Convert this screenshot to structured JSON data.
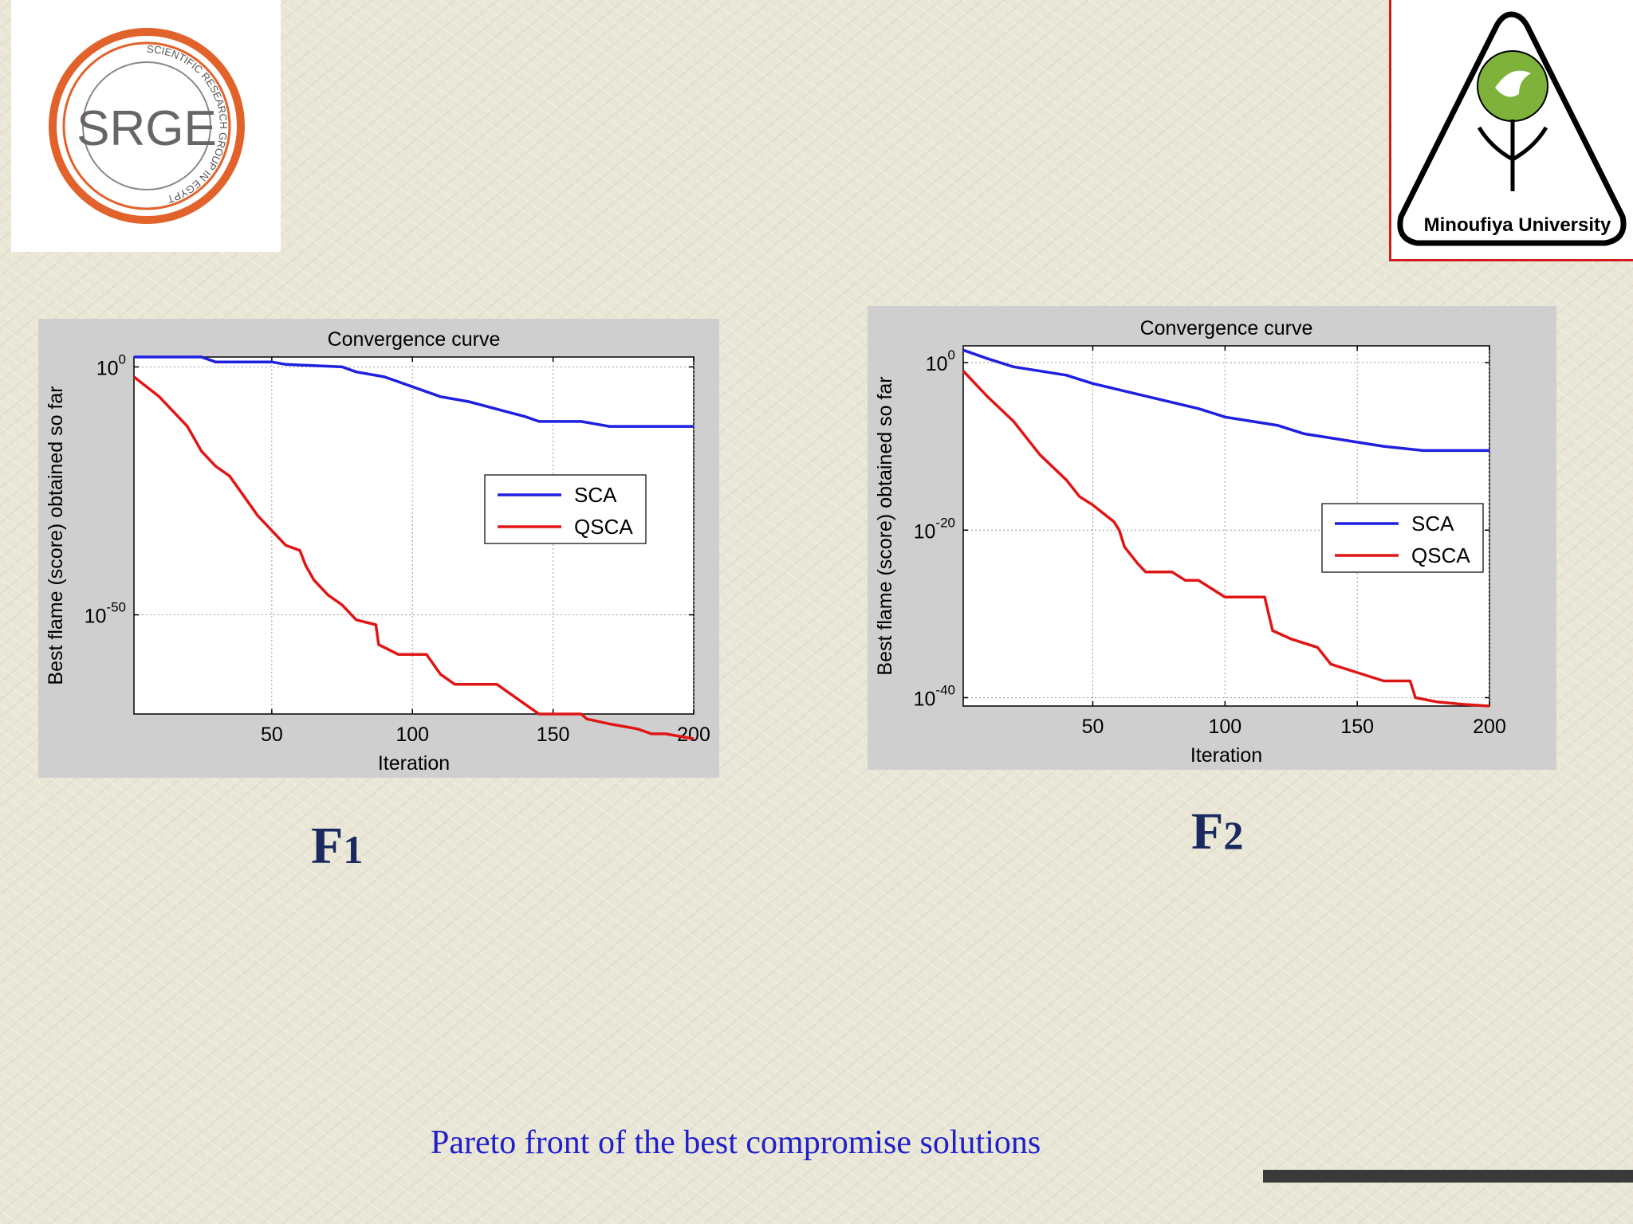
{
  "logos": {
    "left": {
      "text": "SRGE",
      "ring_text": "SCIENTIFIC RESEARCH GROUP IN EGYPT"
    },
    "right": {
      "text": "Minoufiya University"
    }
  },
  "figures": [
    {
      "label_main": "F",
      "label_sub": "1"
    },
    {
      "label_main": "F",
      "label_sub": "2"
    }
  ],
  "caption": "Pareto front of the best compromise solutions",
  "chart_data": [
    {
      "type": "line",
      "title": "Convergence curve",
      "xlabel": "Iteration",
      "ylabel": "Best flame (score) obtained so far",
      "xlim": [
        1,
        200
      ],
      "xticks": [
        50,
        100,
        150,
        200
      ],
      "yscale": "log",
      "yexp_range": [
        -70,
        2
      ],
      "yticks": [
        {
          "exp": 0,
          "label_base": "10",
          "label_exp": "0"
        },
        {
          "exp": -50,
          "label_base": "10",
          "label_exp": "-50"
        }
      ],
      "grid": true,
      "legend": "right",
      "series": [
        {
          "name": "SCA",
          "color": "#1f1fe0",
          "points_log10": [
            [
              1,
              2
            ],
            [
              25,
              2
            ],
            [
              30,
              1
            ],
            [
              50,
              1
            ],
            [
              55,
              0.5
            ],
            [
              75,
              0
            ],
            [
              80,
              -1
            ],
            [
              90,
              -2
            ],
            [
              100,
              -4
            ],
            [
              110,
              -6
            ],
            [
              120,
              -7
            ],
            [
              140,
              -10
            ],
            [
              145,
              -11
            ],
            [
              160,
              -11
            ],
            [
              170,
              -12
            ],
            [
              200,
              -12
            ]
          ]
        },
        {
          "name": "QSCA",
          "color": "#e01616",
          "points_log10": [
            [
              1,
              -2
            ],
            [
              10,
              -6
            ],
            [
              20,
              -12
            ],
            [
              25,
              -17
            ],
            [
              30,
              -20
            ],
            [
              35,
              -22
            ],
            [
              40,
              -26
            ],
            [
              45,
              -30
            ],
            [
              50,
              -33
            ],
            [
              55,
              -36
            ],
            [
              60,
              -37
            ],
            [
              62,
              -40
            ],
            [
              65,
              -43
            ],
            [
              70,
              -46
            ],
            [
              75,
              -48
            ],
            [
              80,
              -51
            ],
            [
              87,
              -52
            ],
            [
              88,
              -56
            ],
            [
              95,
              -58
            ],
            [
              105,
              -58
            ],
            [
              110,
              -62
            ],
            [
              115,
              -64
            ],
            [
              120,
              -64
            ],
            [
              130,
              -64
            ],
            [
              140,
              -68
            ],
            [
              145,
              -70
            ],
            [
              155,
              -70
            ],
            [
              160,
              -70
            ],
            [
              162,
              -71
            ],
            [
              170,
              -72
            ],
            [
              180,
              -73
            ],
            [
              185,
              -74
            ],
            [
              190,
              -74
            ],
            [
              200,
              -75
            ]
          ]
        }
      ]
    },
    {
      "type": "line",
      "title": "Convergence curve",
      "xlabel": "Iteration",
      "ylabel": "Best flame (score) obtained so far",
      "xlim": [
        1,
        200
      ],
      "xticks": [
        50,
        100,
        150,
        200
      ],
      "yscale": "log",
      "yexp_range": [
        -41,
        2
      ],
      "yticks": [
        {
          "exp": 0,
          "label_base": "10",
          "label_exp": "0"
        },
        {
          "exp": -20,
          "label_base": "10",
          "label_exp": "-20"
        },
        {
          "exp": -40,
          "label_base": "10",
          "label_exp": "-40"
        }
      ],
      "grid": true,
      "legend": "right",
      "series": [
        {
          "name": "SCA",
          "color": "#1f1fe0",
          "points_log10": [
            [
              1,
              1.5
            ],
            [
              10,
              0.5
            ],
            [
              20,
              -0.5
            ],
            [
              40,
              -1.5
            ],
            [
              50,
              -2.5
            ],
            [
              70,
              -4
            ],
            [
              90,
              -5.5
            ],
            [
              100,
              -6.5
            ],
            [
              110,
              -7
            ],
            [
              120,
              -7.5
            ],
            [
              130,
              -8.5
            ],
            [
              140,
              -9
            ],
            [
              150,
              -9.5
            ],
            [
              160,
              -10
            ],
            [
              175,
              -10.5
            ],
            [
              200,
              -10.5
            ]
          ]
        },
        {
          "name": "QSCA",
          "color": "#e01616",
          "points_log10": [
            [
              1,
              -1
            ],
            [
              10,
              -4
            ],
            [
              20,
              -7
            ],
            [
              30,
              -11
            ],
            [
              40,
              -14
            ],
            [
              45,
              -16
            ],
            [
              50,
              -17
            ],
            [
              58,
              -19
            ],
            [
              60,
              -20
            ],
            [
              62,
              -22
            ],
            [
              67,
              -24
            ],
            [
              70,
              -25
            ],
            [
              80,
              -25
            ],
            [
              85,
              -26
            ],
            [
              90,
              -26
            ],
            [
              100,
              -28
            ],
            [
              115,
              -28
            ],
            [
              118,
              -32
            ],
            [
              125,
              -33
            ],
            [
              135,
              -34
            ],
            [
              140,
              -36
            ],
            [
              150,
              -37
            ],
            [
              160,
              -38
            ],
            [
              170,
              -38
            ],
            [
              172,
              -40
            ],
            [
              180,
              -40.5
            ],
            [
              190,
              -40.8
            ],
            [
              200,
              -41
            ]
          ]
        }
      ]
    }
  ]
}
